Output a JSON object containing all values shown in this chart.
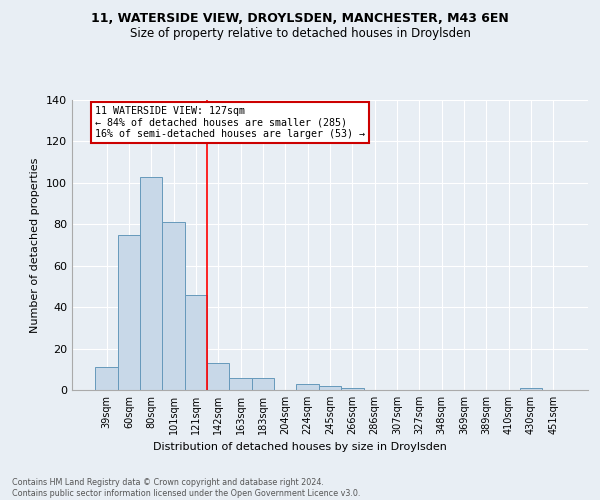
{
  "title": "11, WATERSIDE VIEW, DROYLSDEN, MANCHESTER, M43 6EN",
  "subtitle": "Size of property relative to detached houses in Droylsden",
  "xlabel": "Distribution of detached houses by size in Droylsden",
  "ylabel": "Number of detached properties",
  "bar_labels": [
    "39sqm",
    "60sqm",
    "80sqm",
    "101sqm",
    "121sqm",
    "142sqm",
    "163sqm",
    "183sqm",
    "204sqm",
    "224sqm",
    "245sqm",
    "266sqm",
    "286sqm",
    "307sqm",
    "327sqm",
    "348sqm",
    "369sqm",
    "389sqm",
    "410sqm",
    "430sqm",
    "451sqm"
  ],
  "bar_values": [
    11,
    75,
    103,
    81,
    46,
    13,
    6,
    6,
    0,
    3,
    2,
    1,
    0,
    0,
    0,
    0,
    0,
    0,
    0,
    1,
    0
  ],
  "bar_color": "#c8d8e8",
  "bar_edge_color": "#6699bb",
  "background_color": "#e8eef4",
  "grid_color": "#ffffff",
  "red_line_x": 4.5,
  "annotation_text": "11 WATERSIDE VIEW: 127sqm\n← 84% of detached houses are smaller (285)\n16% of semi-detached houses are larger (53) →",
  "annotation_box_color": "#ffffff",
  "annotation_box_edge_color": "#cc0000",
  "footer_text": "Contains HM Land Registry data © Crown copyright and database right 2024.\nContains public sector information licensed under the Open Government Licence v3.0.",
  "ylim": [
    0,
    140
  ],
  "yticks": [
    0,
    20,
    40,
    60,
    80,
    100,
    120,
    140
  ],
  "title_fontsize": 9,
  "subtitle_fontsize": 8.5
}
